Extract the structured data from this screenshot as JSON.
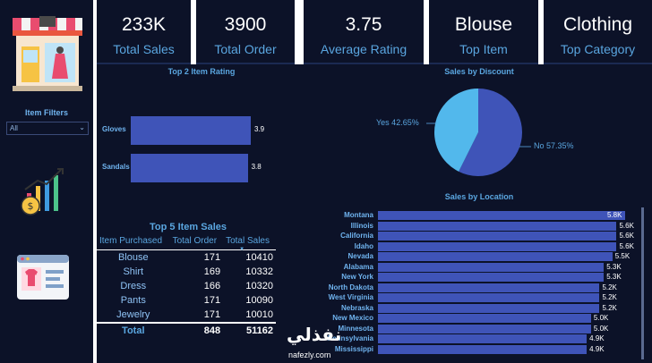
{
  "sidebar": {
    "filter_title": "Item Filters",
    "filter_value": "All",
    "icons": [
      "shop-icon",
      "bar-chart-money-icon",
      "shirt-catalog-icon"
    ]
  },
  "kpis": [
    {
      "value": "233K",
      "label": "Total Sales"
    },
    {
      "value": "3900",
      "label": "Total Order"
    },
    {
      "value": "3.75",
      "label": "Average Rating"
    },
    {
      "value": "Blouse",
      "label": "Top Item"
    },
    {
      "value": "Clothing",
      "label": "Top Category"
    }
  ],
  "colors": {
    "background": "#0c1228",
    "bar": "#3f54b8",
    "accent": "#5aa6e0",
    "pie_no": "#3f54b8",
    "pie_yes": "#52b8ec"
  },
  "chart_data": [
    {
      "type": "bar",
      "title": "Top 2 Item Rating",
      "orientation": "horizontal",
      "categories": [
        "Gloves",
        "Sandals"
      ],
      "values": [
        3.9,
        3.8
      ],
      "value_labels": [
        "3.9",
        "3.8"
      ]
    },
    {
      "type": "pie",
      "title": "Sales by Discount",
      "labels": [
        "Yes",
        "No"
      ],
      "values": [
        42.65,
        57.35
      ],
      "value_labels": [
        "Yes 42.65%",
        "No 57.35%"
      ]
    },
    {
      "type": "table",
      "title": "Top 5 Item Sales",
      "columns": [
        "Item Purchased",
        "Total Order",
        "Total Sales"
      ],
      "rows": [
        [
          "Blouse",
          "171",
          "10410"
        ],
        [
          "Shirt",
          "169",
          "10332"
        ],
        [
          "Dress",
          "166",
          "10320"
        ],
        [
          "Pants",
          "171",
          "10090"
        ],
        [
          "Jewelry",
          "171",
          "10010"
        ]
      ],
      "total": [
        "Total",
        "848",
        "51162"
      ]
    },
    {
      "type": "bar",
      "title": "Sales by Location",
      "orientation": "horizontal",
      "categories": [
        "Montana",
        "Illinois",
        "California",
        "Idaho",
        "Nevada",
        "Alabama",
        "New York",
        "North Dakota",
        "West Virginia",
        "Nebraska",
        "New Mexico",
        "Minnesota",
        "Pennsylvania",
        "Mississippi"
      ],
      "values": [
        5.8,
        5.6,
        5.6,
        5.6,
        5.5,
        5.3,
        5.3,
        5.2,
        5.2,
        5.2,
        5.0,
        5.0,
        4.9,
        4.9
      ],
      "value_labels": [
        "5.8K",
        "5.6K",
        "5.6K",
        "5.6K",
        "5.5K",
        "5.3K",
        "5.3K",
        "5.2K",
        "5.2K",
        "5.2K",
        "5.0K",
        "5.0K",
        "4.9K",
        "4.9K"
      ]
    }
  ],
  "watermark": {
    "text": "نفذلي",
    "sub": "nafezly.com"
  }
}
